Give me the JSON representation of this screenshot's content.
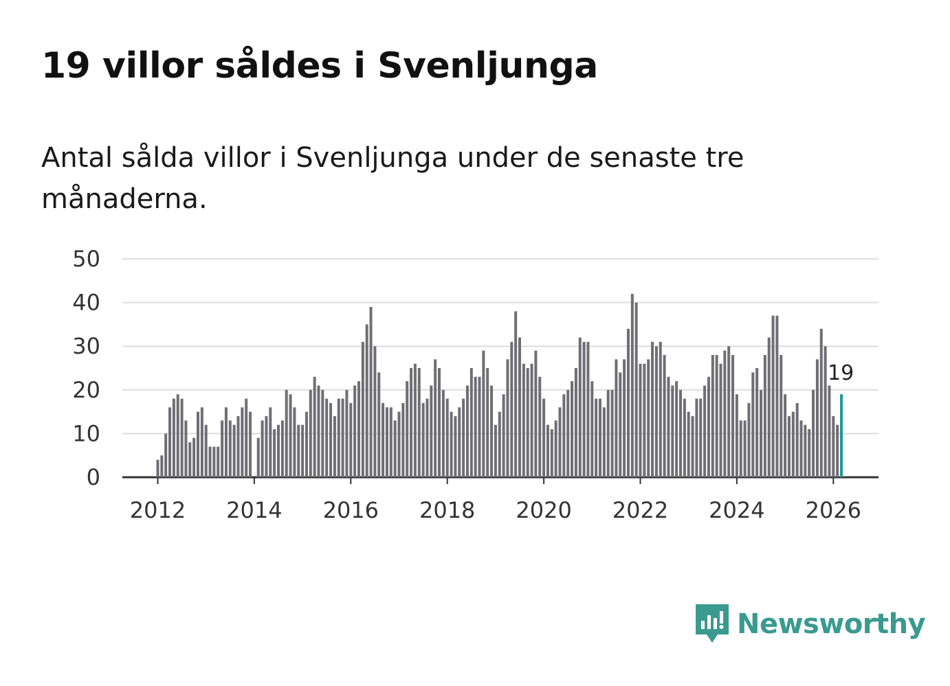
{
  "title": "19 villor såldes i Svenljunga",
  "subtitle": "Antal sålda villor i Svenljunga under de senaste tre månaderna.",
  "logo": {
    "text": "Newsworthy",
    "icon": "newsworthy-logo-icon",
    "color": "#3a9a8f"
  },
  "colors": {
    "bar": "#6f6e74",
    "highlight": "#1b9a96",
    "grid": "#dddddd",
    "axis": "#333333"
  },
  "chart_data": {
    "type": "bar",
    "title": "Antal sålda villor i Svenljunga",
    "xlabel": "",
    "ylabel": "",
    "ylim": [
      0,
      50
    ],
    "yticks": [
      "0",
      "10",
      "20",
      "30",
      "40",
      "50"
    ],
    "xticks": [
      "2012",
      "2014",
      "2016",
      "2018",
      "2020",
      "2022",
      "2024",
      "2026"
    ],
    "x_start": "2012-01",
    "highlight_label": "19",
    "values": [
      4,
      5,
      10,
      16,
      18,
      19,
      18,
      13,
      8,
      9,
      15,
      16,
      12,
      7,
      7,
      7,
      13,
      16,
      13,
      12,
      14,
      16,
      18,
      15,
      0,
      9,
      13,
      14,
      16,
      11,
      12,
      13,
      20,
      19,
      16,
      12,
      12,
      15,
      20,
      23,
      21,
      20,
      18,
      17,
      14,
      18,
      18,
      20,
      17,
      21,
      22,
      31,
      35,
      39,
      30,
      24,
      17,
      16,
      16,
      13,
      15,
      17,
      22,
      25,
      26,
      25,
      17,
      18,
      21,
      27,
      25,
      20,
      18,
      15,
      14,
      16,
      18,
      21,
      25,
      23,
      23,
      29,
      25,
      21,
      12,
      15,
      19,
      27,
      31,
      38,
      32,
      26,
      25,
      26,
      29,
      23,
      18,
      12,
      11,
      13,
      16,
      19,
      20,
      22,
      25,
      32,
      31,
      31,
      22,
      18,
      18,
      16,
      20,
      20,
      27,
      24,
      27,
      34,
      42,
      40,
      26,
      26,
      27,
      31,
      30,
      31,
      28,
      23,
      21,
      22,
      20,
      18,
      15,
      14,
      18,
      18,
      21,
      23,
      28,
      28,
      26,
      29,
      30,
      28,
      19,
      13,
      13,
      17,
      24,
      25,
      20,
      28,
      32,
      37,
      37,
      28,
      19,
      14,
      15,
      17,
      13,
      12,
      11,
      20,
      27,
      34,
      30,
      21,
      14,
      12,
      19
    ]
  }
}
